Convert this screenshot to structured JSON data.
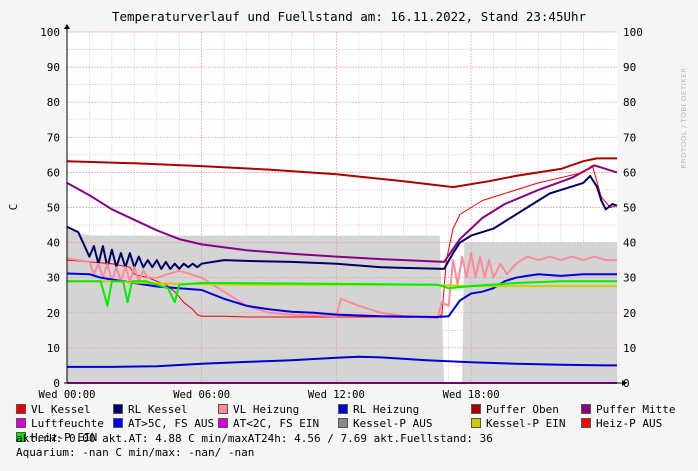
{
  "chart_data": {
    "type": "line",
    "title": "Temperaturverlauf und Fuellstand am: 16.11.2022, Stand 23:45Uhr",
    "ylabel": "C",
    "watermark": "RRDTOOL / TOBI OETIKER",
    "ylim": [
      0,
      100
    ],
    "yticks": [
      0,
      10,
      20,
      30,
      40,
      50,
      60,
      70,
      80,
      90,
      100
    ],
    "xlim_hours": [
      0,
      24.5
    ],
    "xticks": [
      {
        "hour": 0,
        "label": "Wed 00:00"
      },
      {
        "hour": 6,
        "label": "Wed 06:00"
      },
      {
        "hour": 12,
        "label": "Wed 12:00"
      },
      {
        "hour": 18,
        "label": "Wed 18:00"
      }
    ],
    "grid": true,
    "area_series": {
      "name": "Kessel-P AUS",
      "color": "#d4d4d4",
      "points": [
        [
          0,
          44
        ],
        [
          0.4,
          43
        ],
        [
          1,
          42
        ],
        [
          2,
          42
        ],
        [
          6,
          42
        ],
        [
          10,
          42
        ],
        [
          14,
          42
        ],
        [
          16.6,
          42
        ],
        [
          16.8,
          0
        ],
        [
          17.6,
          0
        ],
        [
          17.7,
          40
        ],
        [
          20,
          40
        ],
        [
          24.5,
          40
        ]
      ]
    },
    "series": [
      {
        "name": "Puffer Oben",
        "color": "#aa0000",
        "width": 2,
        "points": [
          [
            0,
            63.2
          ],
          [
            3,
            62.6
          ],
          [
            6,
            61.8
          ],
          [
            9,
            60.8
          ],
          [
            12,
            59.5
          ],
          [
            15,
            57.5
          ],
          [
            17.2,
            55.8
          ],
          [
            18.8,
            57.5
          ],
          [
            20,
            59
          ],
          [
            22,
            61
          ],
          [
            23,
            63.2
          ],
          [
            23.6,
            64
          ],
          [
            24.5,
            64
          ]
        ]
      },
      {
        "name": "Puffer Mitte",
        "color": "#880088",
        "width": 2,
        "points": [
          [
            0,
            57
          ],
          [
            1,
            53.5
          ],
          [
            2,
            49.5
          ],
          [
            3,
            46.5
          ],
          [
            4,
            43.5
          ],
          [
            5,
            41
          ],
          [
            6,
            39.5
          ],
          [
            8,
            37.8
          ],
          [
            10,
            36.8
          ],
          [
            12,
            36
          ],
          [
            14,
            35.3
          ],
          [
            16.8,
            34.5
          ],
          [
            17.5,
            41
          ],
          [
            18.5,
            47
          ],
          [
            19.5,
            51
          ],
          [
            21,
            55
          ],
          [
            22.5,
            58.5
          ],
          [
            23.5,
            62
          ],
          [
            24.5,
            60
          ]
        ]
      },
      {
        "name": "VL Kessel",
        "color": "#ee0000",
        "width": 1,
        "points": [
          [
            0,
            35
          ],
          [
            1,
            34.5
          ],
          [
            2,
            34
          ],
          [
            2.8,
            33
          ],
          [
            3,
            31
          ],
          [
            3.6,
            30
          ],
          [
            4,
            29
          ],
          [
            4.4,
            28
          ],
          [
            4.8,
            26
          ],
          [
            5.2,
            23
          ],
          [
            5.6,
            21
          ],
          [
            5.8,
            19.5
          ],
          [
            6,
            19
          ],
          [
            6.5,
            19
          ],
          [
            7,
            19
          ],
          [
            8,
            18.8
          ],
          [
            10,
            18.8
          ],
          [
            12,
            18.8
          ],
          [
            14,
            18.8
          ],
          [
            16.5,
            18.6
          ],
          [
            16.7,
            19.5
          ],
          [
            16.9,
            35
          ],
          [
            17.2,
            44
          ],
          [
            17.5,
            48
          ],
          [
            18,
            50
          ],
          [
            18.5,
            52
          ],
          [
            19,
            53
          ],
          [
            20,
            55
          ],
          [
            21,
            57
          ],
          [
            22,
            58.5
          ],
          [
            23,
            60
          ],
          [
            23.4,
            62
          ],
          [
            23.8,
            53
          ],
          [
            24.2,
            50
          ],
          [
            24.5,
            50.5
          ]
        ]
      },
      {
        "name": "RL Kessel",
        "color": "#000066",
        "width": 2,
        "points": [
          [
            0,
            44.5
          ],
          [
            0.5,
            43
          ],
          [
            1,
            36
          ],
          [
            1.2,
            39
          ],
          [
            1.4,
            34
          ],
          [
            1.6,
            39
          ],
          [
            1.8,
            33
          ],
          [
            2,
            38
          ],
          [
            2.2,
            33
          ],
          [
            2.4,
            37
          ],
          [
            2.6,
            33
          ],
          [
            2.8,
            37
          ],
          [
            3,
            33
          ],
          [
            3.2,
            36
          ],
          [
            3.4,
            33
          ],
          [
            3.6,
            35
          ],
          [
            3.8,
            33
          ],
          [
            4,
            35
          ],
          [
            4.2,
            32.5
          ],
          [
            4.4,
            34.5
          ],
          [
            4.6,
            32.5
          ],
          [
            4.8,
            34
          ],
          [
            5,
            32.5
          ],
          [
            5.2,
            34
          ],
          [
            5.4,
            33
          ],
          [
            5.6,
            34
          ],
          [
            5.8,
            33
          ],
          [
            6,
            34
          ],
          [
            6.5,
            34.5
          ],
          [
            7,
            35
          ],
          [
            8,
            34.8
          ],
          [
            10,
            34.5
          ],
          [
            12,
            34
          ],
          [
            14,
            33
          ],
          [
            15,
            32.8
          ],
          [
            16.8,
            32.5
          ],
          [
            17.2,
            37
          ],
          [
            17.5,
            40
          ],
          [
            18,
            42
          ],
          [
            18.5,
            43
          ],
          [
            19,
            44
          ],
          [
            19.5,
            46
          ],
          [
            20,
            48
          ],
          [
            20.5,
            50
          ],
          [
            21,
            52
          ],
          [
            21.5,
            54
          ],
          [
            22,
            55
          ],
          [
            22.5,
            56
          ],
          [
            23,
            57
          ],
          [
            23.3,
            59
          ],
          [
            23.6,
            56
          ],
          [
            23.8,
            52
          ],
          [
            24,
            49.5
          ],
          [
            24.3,
            51
          ],
          [
            24.5,
            50.5
          ]
        ]
      },
      {
        "name": "VL Heizung",
        "color": "#ff8899",
        "width": 2,
        "points": [
          [
            0,
            35.5
          ],
          [
            0.5,
            35
          ],
          [
            1,
            34.5
          ],
          [
            1.2,
            31
          ],
          [
            1.4,
            34
          ],
          [
            1.6,
            30
          ],
          [
            1.8,
            34
          ],
          [
            2,
            29
          ],
          [
            2.2,
            33
          ],
          [
            2.4,
            29
          ],
          [
            2.6,
            33
          ],
          [
            2.8,
            29
          ],
          [
            3,
            33
          ],
          [
            3.2,
            29
          ],
          [
            3.4,
            32
          ],
          [
            3.6,
            30
          ],
          [
            4,
            30
          ],
          [
            4.5,
            31
          ],
          [
            5,
            32
          ],
          [
            6,
            30
          ],
          [
            7,
            26
          ],
          [
            8,
            22
          ],
          [
            9,
            20
          ],
          [
            10,
            19.5
          ],
          [
            12,
            19
          ],
          [
            12.2,
            24
          ],
          [
            13,
            22
          ],
          [
            14,
            20
          ],
          [
            15,
            19
          ],
          [
            16.5,
            18.5
          ],
          [
            16.7,
            23
          ],
          [
            17,
            22
          ],
          [
            17.2,
            35
          ],
          [
            17.4,
            28
          ],
          [
            17.6,
            36
          ],
          [
            17.8,
            30
          ],
          [
            18,
            37
          ],
          [
            18.2,
            30
          ],
          [
            18.4,
            36
          ],
          [
            18.6,
            30
          ],
          [
            18.8,
            35
          ],
          [
            19,
            30
          ],
          [
            19.3,
            34
          ],
          [
            19.6,
            31
          ],
          [
            20,
            34
          ],
          [
            20.5,
            36
          ],
          [
            21,
            35
          ],
          [
            21.5,
            36
          ],
          [
            22,
            35
          ],
          [
            22.5,
            36
          ],
          [
            23,
            35
          ],
          [
            23.5,
            36
          ],
          [
            24,
            35
          ],
          [
            24.5,
            35
          ]
        ]
      },
      {
        "name": "RL Heizung",
        "color": "#0000dd",
        "width": 2,
        "points": [
          [
            0,
            31.2
          ],
          [
            1,
            31
          ],
          [
            1.5,
            30
          ],
          [
            2,
            29.5
          ],
          [
            3,
            28.5
          ],
          [
            4,
            27.5
          ],
          [
            5,
            27
          ],
          [
            6,
            26.5
          ],
          [
            7,
            24
          ],
          [
            8,
            22
          ],
          [
            9,
            21
          ],
          [
            10,
            20.3
          ],
          [
            11,
            20
          ],
          [
            12,
            19.5
          ],
          [
            14,
            19
          ],
          [
            16.5,
            18.8
          ],
          [
            17,
            19
          ],
          [
            17.5,
            23.5
          ],
          [
            18,
            25.5
          ],
          [
            18.5,
            26
          ],
          [
            19,
            27
          ],
          [
            19.5,
            29
          ],
          [
            20,
            30
          ],
          [
            20.5,
            30.5
          ],
          [
            21,
            31
          ],
          [
            22,
            30.5
          ],
          [
            23,
            31
          ],
          [
            24,
            31
          ],
          [
            24.5,
            31
          ]
        ]
      },
      {
        "name": "Kessel-P EIN",
        "color": "#cccc00",
        "width": 2,
        "points": [
          [
            0,
            29
          ],
          [
            2,
            29
          ],
          [
            3,
            28.6
          ],
          [
            4,
            28.4
          ],
          [
            5,
            28.3
          ],
          [
            6,
            28.2
          ],
          [
            8,
            28
          ],
          [
            10,
            28
          ],
          [
            12,
            28
          ],
          [
            14,
            28
          ],
          [
            16,
            28
          ],
          [
            17,
            27.8
          ],
          [
            18,
            27.6
          ],
          [
            24.5,
            27.6
          ]
        ]
      },
      {
        "name": "Heiz-P EIN",
        "color": "#00ee00",
        "width": 2,
        "points": [
          [
            0,
            29
          ],
          [
            1.5,
            29
          ],
          [
            1.8,
            22
          ],
          [
            2,
            29
          ],
          [
            2.5,
            29
          ],
          [
            2.7,
            23
          ],
          [
            2.9,
            29
          ],
          [
            3.5,
            29
          ],
          [
            4,
            28
          ],
          [
            4.5,
            27
          ],
          [
            4.8,
            23
          ],
          [
            5,
            28
          ],
          [
            6,
            28.5
          ],
          [
            7,
            28.5
          ],
          [
            16.5,
            28
          ],
          [
            17,
            27
          ],
          [
            18,
            27.6
          ],
          [
            20,
            28.5
          ],
          [
            22,
            29
          ],
          [
            24.5,
            29
          ]
        ]
      },
      {
        "name": "Luftfeuchte",
        "color": "#dd00dd",
        "width": 2,
        "points": [
          [
            0,
            0
          ],
          [
            24.5,
            0
          ]
        ]
      },
      {
        "name": "AT",
        "color": "#0000cc",
        "width": 2,
        "points": [
          [
            0,
            4.6
          ],
          [
            2,
            4.6
          ],
          [
            4,
            4.8
          ],
          [
            6,
            5.5
          ],
          [
            8,
            6
          ],
          [
            10,
            6.5
          ],
          [
            12,
            7.2
          ],
          [
            13,
            7.5
          ],
          [
            14,
            7.3
          ],
          [
            16,
            6.5
          ],
          [
            18,
            5.9
          ],
          [
            20,
            5.5
          ],
          [
            22,
            5.2
          ],
          [
            24,
            5
          ],
          [
            24.5,
            5
          ]
        ]
      }
    ]
  },
  "legend": [
    {
      "label": "VL Kessel",
      "color": "#ee0000"
    },
    {
      "label": "RL Kessel",
      "color": "#000066"
    },
    {
      "label": "VL Heizung",
      "color": "#ff8899"
    },
    {
      "label": "RL Heizung",
      "color": "#0000dd"
    },
    {
      "label": "Puffer Oben",
      "color": "#aa0000"
    },
    {
      "label": "Puffer Mitte",
      "color": "#880088"
    },
    {
      "label": "Luftfeuchte",
      "color": "#dd00dd"
    },
    {
      "label": "AT>5C, FS AUS",
      "color": "#0000ff"
    },
    {
      "label": "AT<2C, FS EIN",
      "color": "#dd00dd"
    },
    {
      "label": "Kessel-P AUS",
      "color": "#888888"
    },
    {
      "label": "Kessel-P EIN",
      "color": "#cccc00"
    },
    {
      "label": "Heiz-P AUS",
      "color": "#ff0000"
    },
    {
      "label": "Heiz-P EIN",
      "color": "#00ee00"
    }
  ],
  "stats": {
    "line1": "akt.rH: 0.00   akt.AT: 4.88 C   min/maxAT24h: 4.56 / 7.69   akt.Fuellstand:   36",
    "line2": "Aquarium: -nan C  min/max: -nan/ -nan"
  }
}
